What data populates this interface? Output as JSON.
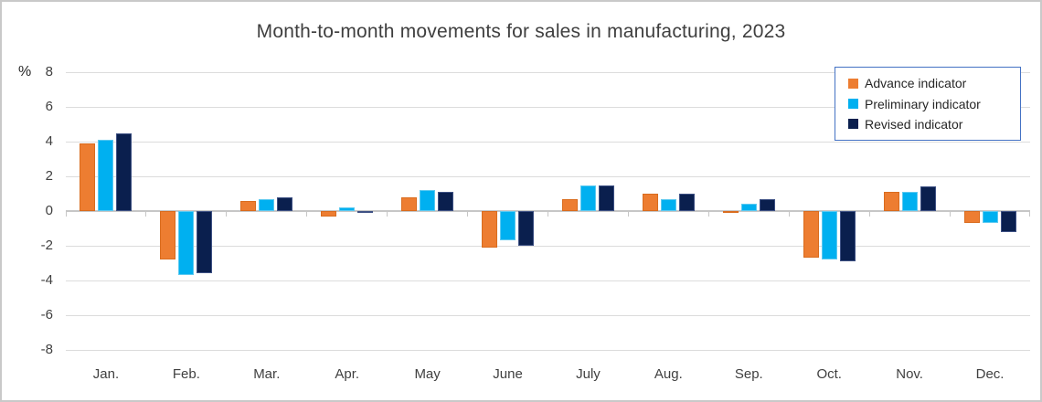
{
  "figure": {
    "title": "Month-to-month movements for sales in manufacturing, 2023",
    "y_axis_unit": "%"
  },
  "legend": {
    "position": "top-right",
    "border_color": "#4472C4"
  },
  "chart_data": {
    "type": "bar",
    "title": "Month-to-month movements for sales in manufacturing, 2023",
    "xlabel": "",
    "ylabel": "%",
    "ylim": [
      -8,
      8
    ],
    "yticks": [
      8,
      6,
      4,
      2,
      0,
      -2,
      -4,
      -6,
      -8
    ],
    "grid": true,
    "gridline_color": "#dcdcdc",
    "axis_color": "#c6c6c6",
    "legend_position": "top-right",
    "categories": [
      "Jan.",
      "Feb.",
      "Mar.",
      "Apr.",
      "May",
      "June",
      "July",
      "Aug.",
      "Sep.",
      "Oct.",
      "Nov.",
      "Dec."
    ],
    "series": [
      {
        "name": "Advance indicator",
        "color": "#ED7D31",
        "edge": "#d96c1e",
        "values": [
          3.9,
          -2.8,
          0.6,
          -0.3,
          0.8,
          -2.1,
          0.7,
          1.0,
          -0.1,
          -2.7,
          1.1,
          -0.7
        ]
      },
      {
        "name": "Preliminary indicator",
        "color": "#00B0F0",
        "edge": "#5cc9f0",
        "values": [
          4.1,
          -3.7,
          0.7,
          0.2,
          1.2,
          -1.7,
          1.5,
          0.7,
          0.4,
          -2.8,
          1.1,
          -0.7
        ]
      },
      {
        "name": "Revised indicator",
        "color": "#0A1F4E",
        "edge": "#3e5184",
        "values": [
          4.5,
          -3.6,
          0.8,
          -0.1,
          1.1,
          -2.0,
          1.5,
          1.0,
          0.7,
          -2.9,
          1.4,
          -1.2
        ]
      }
    ]
  }
}
